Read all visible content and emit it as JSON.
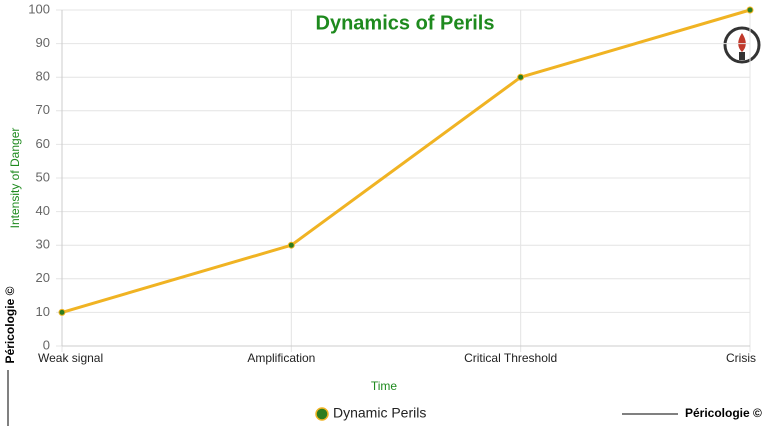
{
  "chart_data": {
    "type": "line",
    "title": "Dynamics of Perils",
    "x_label": "Time",
    "y_label": "Intensity of Danger",
    "categories": [
      "Weak signal",
      "Amplification",
      "Critical Threshold",
      "Crisis"
    ],
    "series": [
      {
        "name": "Dynamic Perils",
        "color": "#f0b323",
        "marker_color": "#2e7d1e",
        "values": [
          10,
          30,
          80,
          100
        ]
      }
    ],
    "ylim": [
      0,
      100
    ],
    "yticks": [
      0,
      10,
      20,
      30,
      40,
      50,
      60,
      70,
      80,
      90,
      100
    ],
    "grid": true,
    "legend": "bottom"
  },
  "watermark": "Péricologie ©"
}
